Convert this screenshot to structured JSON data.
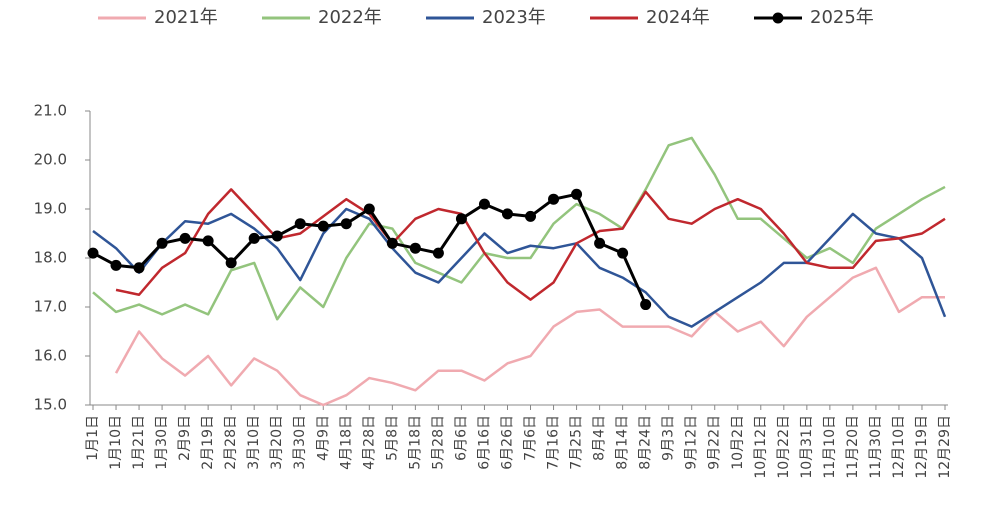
{
  "chart_data": {
    "type": "line",
    "categories": [
      "1月1日",
      "1月10日",
      "1月21日",
      "1月30日",
      "2月9日",
      "2月19日",
      "2月28日",
      "3月10日",
      "3月20日",
      "3月30日",
      "4月9日",
      "4月18日",
      "4月28日",
      "5月8日",
      "5月18日",
      "5月28日",
      "6月6日",
      "6月16日",
      "6月26日",
      "7月6日",
      "7月16日",
      "7月25日",
      "8月4日",
      "8月14日",
      "8月24日",
      "9月3日",
      "9月12日",
      "9月22日",
      "10月2日",
      "10月12日",
      "10月22日",
      "10月31日",
      "11月10日",
      "11月20日",
      "11月30日",
      "12月10日",
      "12月19日",
      "12月29日"
    ],
    "series": [
      {
        "name": "2021年",
        "color": "#f0aab0",
        "values": [
          null,
          15.65,
          16.5,
          15.95,
          15.6,
          16.0,
          15.4,
          15.95,
          15.7,
          15.2,
          15.0,
          15.2,
          15.55,
          15.45,
          15.3,
          15.7,
          15.7,
          15.5,
          15.85,
          16.0,
          16.6,
          16.9,
          16.95,
          16.6,
          16.6,
          16.6,
          16.4,
          16.9,
          16.5,
          16.7,
          16.2,
          16.8,
          17.2,
          17.6,
          17.8,
          16.9,
          17.2,
          17.2
        ]
      },
      {
        "name": "2022年",
        "color": "#93c47d",
        "values": [
          17.3,
          16.9,
          17.05,
          16.85,
          17.05,
          16.85,
          17.75,
          17.9,
          16.75,
          17.4,
          17.0,
          18.0,
          18.7,
          18.6,
          17.9,
          17.7,
          17.5,
          18.1,
          18.0,
          18.0,
          18.7,
          19.1,
          18.9,
          18.6,
          19.4,
          20.3,
          20.45,
          19.7,
          18.8,
          18.8,
          18.4,
          18.0,
          18.2,
          17.9,
          18.6,
          18.9,
          19.2,
          19.45
        ]
      },
      {
        "name": "2023年",
        "color": "#2f5597",
        "values": [
          18.55,
          18.2,
          17.7,
          18.3,
          18.75,
          18.7,
          18.9,
          18.6,
          18.2,
          17.55,
          18.5,
          19.0,
          18.8,
          18.2,
          17.7,
          17.5,
          18.0,
          18.5,
          18.1,
          18.25,
          18.2,
          18.3,
          17.8,
          17.6,
          17.3,
          16.8,
          16.6,
          16.9,
          17.2,
          17.5,
          17.9,
          17.9,
          18.4,
          18.9,
          18.5,
          18.4,
          18.0,
          16.8
        ]
      },
      {
        "name": "2024年",
        "color": "#c0282e",
        "values": [
          null,
          17.35,
          17.25,
          17.8,
          18.1,
          18.9,
          19.4,
          18.9,
          18.4,
          18.5,
          18.85,
          19.2,
          18.9,
          18.3,
          18.8,
          19.0,
          18.9,
          18.1,
          17.5,
          17.15,
          17.5,
          18.3,
          18.55,
          18.6,
          19.35,
          18.8,
          18.7,
          19.0,
          19.2,
          19.0,
          18.5,
          17.9,
          17.8,
          17.8,
          18.35,
          18.4,
          18.5,
          18.8
        ]
      },
      {
        "name": "2025年",
        "color": "#000000",
        "marker": true,
        "values": [
          18.1,
          17.85,
          17.8,
          18.3,
          18.4,
          18.35,
          17.9,
          18.4,
          18.45,
          18.7,
          18.65,
          18.7,
          19.0,
          18.3,
          18.2,
          18.1,
          18.8,
          19.1,
          18.9,
          18.85,
          19.2,
          19.3,
          18.3,
          18.1,
          17.05,
          null,
          null,
          null,
          null,
          null,
          null,
          null,
          null,
          null,
          null,
          null,
          null,
          null
        ]
      }
    ],
    "ylim": [
      15,
      21
    ],
    "yticks": [
      {
        "value": 15,
        "label": "15.0"
      },
      {
        "value": 16,
        "label": "16.0"
      },
      {
        "value": 17,
        "label": "17.0"
      },
      {
        "value": 18,
        "label": "18.0"
      },
      {
        "value": 19,
        "label": "19.0"
      },
      {
        "value": 20,
        "label": "20.0"
      },
      {
        "value": 21,
        "label": "21.0"
      }
    ],
    "grid": false,
    "legend": "top"
  }
}
